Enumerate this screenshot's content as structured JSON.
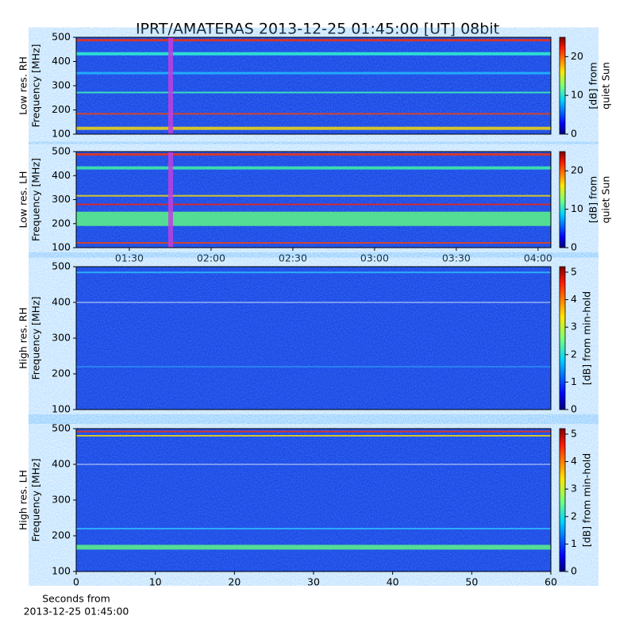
{
  "chart_data": [
    {
      "type": "spectrogram",
      "title": "IPRT/AMATERAS 2013-12-25 01:45:00 [UT]   08bit",
      "ylabel": [
        "Low res. RH",
        "Frequency [MHz]"
      ],
      "ylim": [
        100,
        500
      ],
      "yticks": [
        100,
        200,
        300,
        400,
        500
      ],
      "colorbar": {
        "label": [
          "[dB] from",
          "quiet Sun"
        ],
        "lim": [
          0,
          25
        ],
        "ticks": [
          0,
          10,
          20
        ]
      }
    },
    {
      "type": "spectrogram",
      "ylabel": [
        "Low res. LH",
        "Frequency [MHz]"
      ],
      "ylim": [
        100,
        500
      ],
      "yticks": [
        100,
        200,
        300,
        400,
        500
      ],
      "xlim": [
        70.5,
        244.7
      ],
      "xticks": [
        {
          "value": 90,
          "label": "01:30"
        },
        {
          "value": 120,
          "label": "02:00"
        },
        {
          "value": 150,
          "label": "02:30"
        },
        {
          "value": 180,
          "label": "03:00"
        },
        {
          "value": 210,
          "label": "03:30"
        },
        {
          "value": 240,
          "label": "04:00"
        }
      ],
      "colorbar": {
        "label": [
          "[dB] from",
          "quiet Sun"
        ],
        "lim": [
          0,
          25
        ],
        "ticks": [
          0,
          10,
          20
        ]
      }
    },
    {
      "type": "spectrogram",
      "ylabel": [
        "High res. RH",
        "Frequency [MHz]"
      ],
      "ylim": [
        100,
        500
      ],
      "yticks": [
        100,
        200,
        300,
        400,
        500
      ],
      "colorbar": {
        "label": [
          "[dB] from min-hold"
        ],
        "lim": [
          0,
          5.2
        ],
        "ticks": [
          0,
          1,
          2,
          3,
          4,
          5
        ]
      }
    },
    {
      "type": "spectrogram",
      "ylabel": [
        "High res. LH",
        "Frequency [MHz]"
      ],
      "ylim": [
        100,
        500
      ],
      "yticks": [
        100,
        200,
        300,
        400,
        500
      ],
      "xlabel": [
        "Seconds from",
        "2013-12-25 01:45:00"
      ],
      "xlim": [
        0,
        60
      ],
      "xticks": [
        0,
        10,
        20,
        30,
        40,
        50,
        60
      ],
      "colorbar": {
        "label": [
          "[dB] from min-hold"
        ],
        "lim": [
          0,
          5.2
        ],
        "ticks": [
          0,
          1,
          2,
          3,
          4,
          5
        ]
      }
    }
  ]
}
